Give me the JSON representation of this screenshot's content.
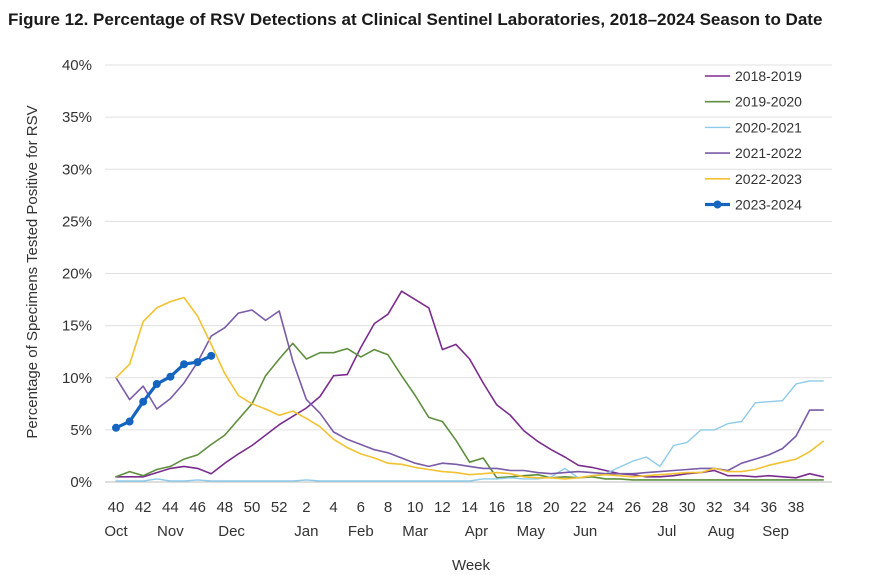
{
  "chart_data": {
    "type": "line",
    "title": "Figure 12. Percentage of RSV Detections at Clinical Sentinel Laboratories, 2018–2024 Season to Date",
    "xlabel": "Week",
    "ylabel": "Percentage of Specimens Tested Positive for RSV",
    "ylim": [
      0,
      40
    ],
    "yticks": [
      "0%",
      "5%",
      "10%",
      "15%",
      "20%",
      "25%",
      "30%",
      "35%",
      "40%"
    ],
    "xtick_labels": [
      "40",
      "42",
      "44",
      "46",
      "48",
      "50",
      "52",
      "2",
      "4",
      "6",
      "8",
      "10",
      "12",
      "14",
      "16",
      "18",
      "20",
      "22",
      "24",
      "26",
      "28",
      "30",
      "32",
      "34",
      "36",
      "38"
    ],
    "month_labels": [
      "Oct",
      "Nov",
      "Dec",
      "Jan",
      "Feb",
      "Mar",
      "Apr",
      "May",
      "Jun",
      "Jul",
      "Aug",
      "Sep"
    ],
    "month_positions": [
      0,
      4,
      8.5,
      14,
      18,
      22,
      26.5,
      30.5,
      34.5,
      40.5,
      44.5,
      48.5
    ],
    "n_weeks": 53,
    "legend_position": "top-right",
    "series": [
      {
        "name": "2018-2019",
        "color": "#7b2d8e",
        "width": 1.6,
        "markers": false,
        "values": [
          0.5,
          0.5,
          0.5,
          0.9,
          1.3,
          1.5,
          1.3,
          0.8,
          1.8,
          2.7,
          3.5,
          4.5,
          5.5,
          6.3,
          7.1,
          8.2,
          10.2,
          10.3,
          12.9,
          15.2,
          16.1,
          18.3,
          17.5,
          16.7,
          12.7,
          13.2,
          11.8,
          9.5,
          7.4,
          6.4,
          4.9,
          3.9,
          3.1,
          2.4,
          1.6,
          1.4,
          1.1,
          0.8,
          0.7,
          0.5,
          0.5,
          0.6,
          0.8,
          0.9,
          1.1,
          0.6,
          0.6,
          0.5,
          0.6,
          0.5,
          0.4,
          0.8,
          0.5
        ]
      },
      {
        "name": "2019-2020",
        "color": "#5f8f3e",
        "width": 1.6,
        "markers": false,
        "values": [
          0.5,
          1.0,
          0.6,
          1.2,
          1.5,
          2.2,
          2.6,
          3.6,
          4.5,
          6.0,
          7.5,
          10.2,
          11.8,
          13.3,
          11.8,
          12.4,
          12.4,
          12.8,
          12.0,
          12.7,
          12.2,
          10.2,
          8.3,
          6.2,
          5.8,
          4.0,
          1.9,
          2.3,
          0.4,
          0.5,
          0.6,
          0.7,
          0.4,
          0.5,
          0.4,
          0.5,
          0.3,
          0.3,
          0.2,
          0.2,
          0.2,
          0.2,
          0.2,
          0.2,
          0.2,
          0.2,
          0.2,
          0.2,
          0.2,
          0.2,
          0.2,
          0.2,
          0.2
        ]
      },
      {
        "name": "2020-2021",
        "color": "#8ecbea",
        "width": 1.4,
        "markers": false,
        "values": [
          0.1,
          0.1,
          0.1,
          0.3,
          0.1,
          0.1,
          0.2,
          0.1,
          0.1,
          0.1,
          0.1,
          0.1,
          0.1,
          0.1,
          0.2,
          0.1,
          0.1,
          0.1,
          0.1,
          0.1,
          0.1,
          0.1,
          0.1,
          0.1,
          0.1,
          0.1,
          0.1,
          0.3,
          0.3,
          0.4,
          0.3,
          0.3,
          0.5,
          1.3,
          0.4,
          0.6,
          0.8,
          1.4,
          2.0,
          2.4,
          1.5,
          3.5,
          3.8,
          5.0,
          5.0,
          5.6,
          5.8,
          7.6,
          7.7,
          7.8,
          9.4,
          9.7,
          9.7
        ]
      },
      {
        "name": "2021-2022",
        "color": "#7a5ba8",
        "width": 1.6,
        "markers": false,
        "values": [
          10.0,
          7.9,
          9.2,
          7.0,
          8.0,
          9.5,
          11.5,
          14.0,
          14.8,
          16.2,
          16.5,
          15.5,
          16.4,
          11.6,
          7.9,
          6.6,
          4.8,
          4.1,
          3.6,
          3.1,
          2.8,
          2.3,
          1.8,
          1.5,
          1.8,
          1.7,
          1.5,
          1.3,
          1.3,
          1.1,
          1.1,
          0.9,
          0.8,
          0.9,
          1.0,
          0.9,
          0.8,
          0.8,
          0.8,
          0.9,
          1.0,
          1.1,
          1.2,
          1.3,
          1.3,
          1.1,
          1.8,
          2.2,
          2.6,
          3.2,
          4.4,
          6.9,
          6.9
        ]
      },
      {
        "name": "2022-2023",
        "color": "#f2c232",
        "width": 1.6,
        "markers": false,
        "values": [
          10.0,
          11.3,
          15.4,
          16.7,
          17.3,
          17.7,
          15.9,
          13.2,
          10.4,
          8.3,
          7.5,
          7.0,
          6.4,
          6.8,
          6.1,
          5.3,
          4.1,
          3.3,
          2.7,
          2.3,
          1.8,
          1.7,
          1.4,
          1.2,
          1.0,
          0.9,
          0.7,
          0.8,
          0.9,
          0.8,
          0.5,
          0.4,
          0.4,
          0.3,
          0.4,
          0.6,
          0.7,
          0.6,
          0.5,
          0.6,
          0.7,
          0.8,
          0.9,
          0.9,
          1.3,
          1.0,
          1.0,
          1.2,
          1.6,
          1.9,
          2.2,
          2.9,
          3.9
        ]
      },
      {
        "name": "2023-2024",
        "color": "#1565c0",
        "width": 3.2,
        "markers": true,
        "values": [
          5.2,
          5.8,
          7.7,
          9.4,
          10.1,
          11.3,
          11.5,
          12.1
        ]
      }
    ]
  }
}
